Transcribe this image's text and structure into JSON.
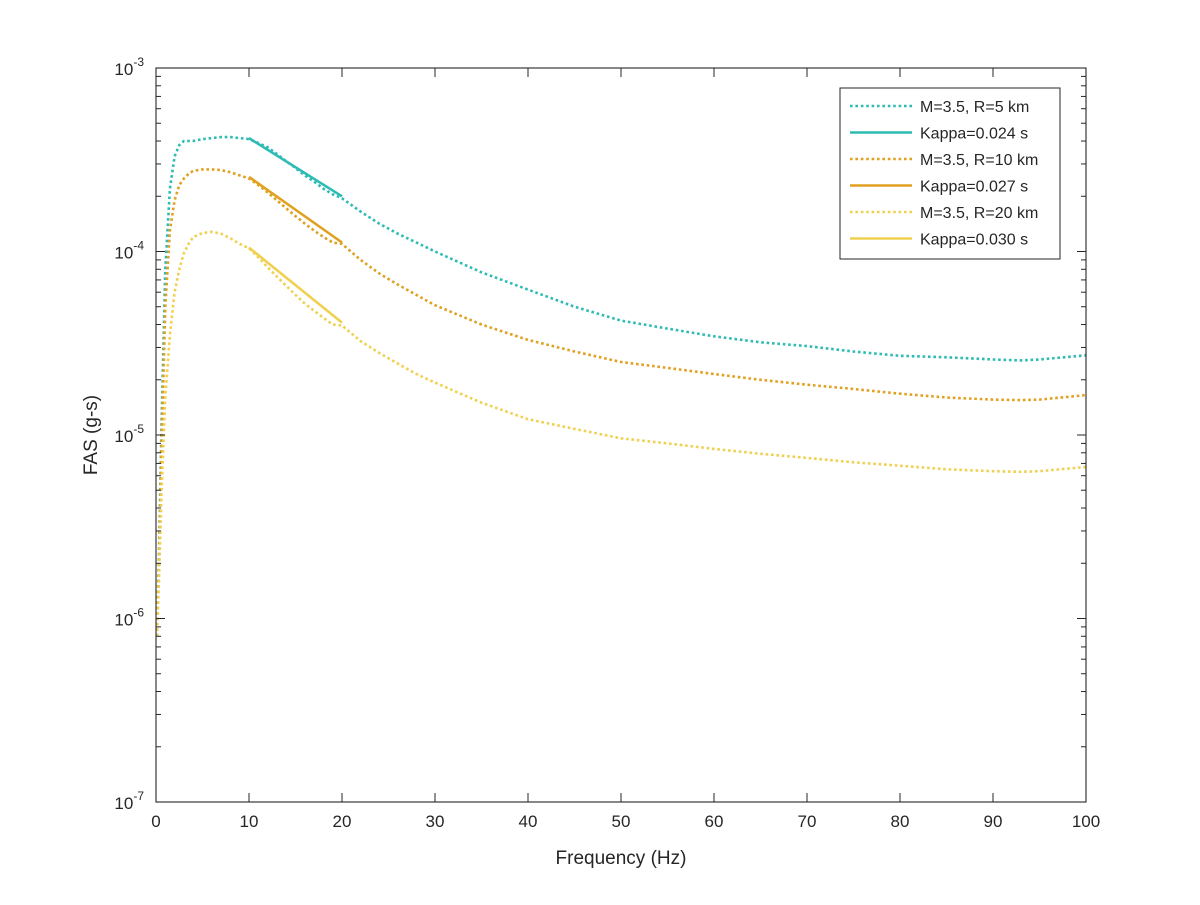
{
  "chart_data": {
    "type": "line",
    "xlabel": "Frequency (Hz)",
    "ylabel": "FAS (g-s)",
    "xlim": [
      0,
      100
    ],
    "ylim": [
      1e-07,
      0.001
    ],
    "yscale": "log",
    "grid": false,
    "legend_position": "top-right",
    "x_ticks": [
      0,
      10,
      20,
      30,
      40,
      50,
      60,
      70,
      80,
      90,
      100
    ],
    "x_tick_labels": [
      "0",
      "10",
      "20",
      "30",
      "40",
      "50",
      "60",
      "70",
      "80",
      "90",
      "100"
    ],
    "y_ticks": [
      1e-07,
      1e-06,
      1e-05,
      0.0001,
      0.001
    ],
    "y_tick_labels": [
      {
        "base": "10",
        "exp": "-7"
      },
      {
        "base": "10",
        "exp": "-6"
      },
      {
        "base": "10",
        "exp": "-5"
      },
      {
        "base": "10",
        "exp": "-4"
      },
      {
        "base": "10",
        "exp": "-3"
      }
    ],
    "series": [
      {
        "name": "M=3.5, R=5 km",
        "color": "#2dbbb4",
        "style": "dotted",
        "x": [
          0.1,
          0.3,
          0.6,
          1.0,
          1.5,
          2.0,
          2.5,
          3.0,
          3.5,
          4,
          5,
          6,
          7,
          8,
          9,
          10,
          11,
          12,
          13,
          14,
          15,
          16,
          17,
          18,
          19,
          20,
          22,
          24,
          26,
          28,
          30,
          35,
          40,
          45,
          50,
          55,
          60,
          65,
          70,
          75,
          80,
          85,
          90,
          93,
          95,
          100
        ],
        "y": [
          8e-07,
          2e-06,
          1.2e-05,
          8e-05,
          0.00022,
          0.00033,
          0.00038,
          0.0004,
          0.0004,
          0.0004,
          0.00041,
          0.000415,
          0.00042,
          0.00042,
          0.000415,
          0.00041,
          0.00039,
          0.00037,
          0.00034,
          0.00031,
          0.000285,
          0.00026,
          0.00024,
          0.00022,
          0.000205,
          0.000195,
          0.000165,
          0.000142,
          0.000125,
          0.000112,
          0.0001,
          7.7e-05,
          6.2e-05,
          5e-05,
          4.2e-05,
          3.8e-05,
          3.45e-05,
          3.2e-05,
          3.05e-05,
          2.85e-05,
          2.7e-05,
          2.65e-05,
          2.58e-05,
          2.55e-05,
          2.58e-05,
          2.72e-05
        ]
      },
      {
        "name": "Kappa=0.024 s",
        "color": "#2dbbb4",
        "style": "solid",
        "x": [
          10,
          20
        ],
        "y": [
          0.000415,
          0.0002
        ]
      },
      {
        "name": "M=3.5, R=10 km",
        "color": "#e0a020",
        "style": "dotted",
        "x": [
          0.1,
          0.3,
          0.6,
          1.0,
          1.5,
          2.0,
          2.5,
          3.0,
          3.5,
          4,
          5,
          6,
          7,
          8,
          9,
          10,
          11,
          12,
          13,
          14,
          15,
          16,
          17,
          18,
          19,
          20,
          22,
          24,
          26,
          28,
          30,
          35,
          40,
          45,
          50,
          55,
          60,
          65,
          70,
          75,
          80,
          85,
          90,
          93,
          95,
          100
        ],
        "y": [
          8e-07,
          1.8e-06,
          9e-06,
          5e-05,
          0.00013,
          0.00019,
          0.00023,
          0.00025,
          0.000265,
          0.000275,
          0.00028,
          0.00028,
          0.000278,
          0.00027,
          0.00026,
          0.00025,
          0.00023,
          0.00021,
          0.00019,
          0.000172,
          0.000156,
          0.000142,
          0.00013,
          0.00012,
          0.000112,
          0.00011,
          9e-05,
          7.6e-05,
          6.6e-05,
          5.8e-05,
          5.1e-05,
          4e-05,
          3.3e-05,
          2.85e-05,
          2.5e-05,
          2.32e-05,
          2.15e-05,
          2e-05,
          1.88e-05,
          1.78e-05,
          1.68e-05,
          1.6e-05,
          1.56e-05,
          1.55e-05,
          1.56e-05,
          1.65e-05
        ]
      },
      {
        "name": "Kappa=0.027 s",
        "color": "#e0a020",
        "style": "solid",
        "x": [
          10,
          20
        ],
        "y": [
          0.000255,
          0.000112
        ]
      },
      {
        "name": "M=3.5, R=20 km",
        "color": "#f0d050",
        "style": "dotted",
        "x": [
          0.1,
          0.3,
          0.6,
          1.0,
          1.5,
          2.0,
          2.5,
          3.0,
          3.5,
          4,
          5,
          6,
          7,
          8,
          9,
          10,
          11,
          12,
          13,
          14,
          15,
          16,
          17,
          18,
          19,
          20,
          22,
          24,
          26,
          28,
          30,
          35,
          40,
          45,
          50,
          55,
          60,
          65,
          70,
          75,
          80,
          85,
          90,
          93,
          95,
          100
        ],
        "y": [
          8e-07,
          1.5e-06,
          5e-06,
          1.6e-05,
          3.5e-05,
          6e-05,
          8e-05,
          9.8e-05,
          0.00011,
          0.00012,
          0.000126,
          0.000128,
          0.000125,
          0.000118,
          0.00011,
          0.000104,
          9.3e-05,
          8.2e-05,
          7.3e-05,
          6.5e-05,
          5.8e-05,
          5.2e-05,
          4.75e-05,
          4.35e-05,
          4e-05,
          3.95e-05,
          3.25e-05,
          2.8e-05,
          2.45e-05,
          2.15e-05,
          1.93e-05,
          1.5e-05,
          1.22e-05,
          1.08e-05,
          9.6e-06,
          9e-06,
          8.4e-06,
          7.9e-06,
          7.5e-06,
          7.1e-06,
          6.8e-06,
          6.5e-06,
          6.35e-06,
          6.3e-06,
          6.35e-06,
          6.7e-06
        ]
      },
      {
        "name": "Kappa=0.030 s",
        "color": "#f0d050",
        "style": "solid",
        "x": [
          10,
          20
        ],
        "y": [
          0.000105,
          4.1e-05
        ]
      }
    ]
  }
}
